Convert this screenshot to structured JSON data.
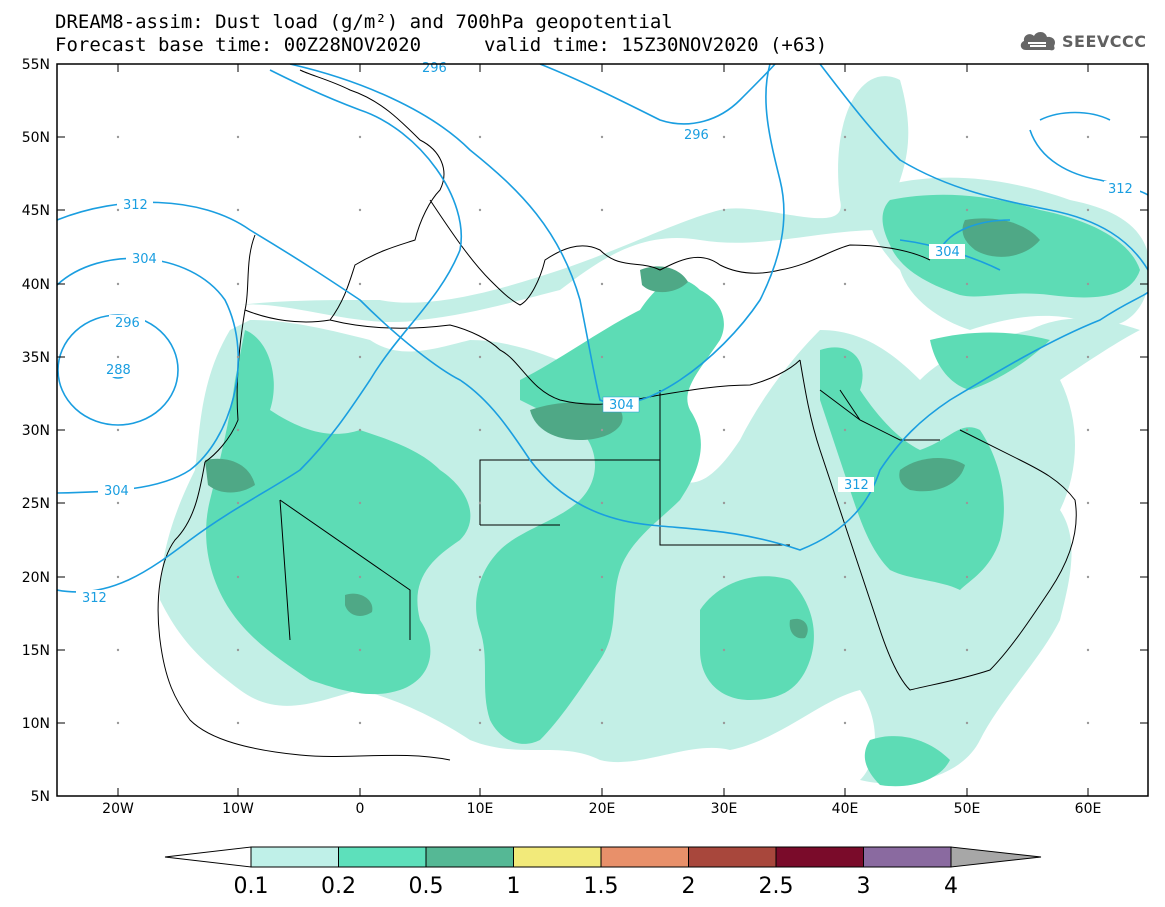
{
  "header": {
    "title_line1": "DREAM8-assim: Dust load (g/m²) and 700hPa geopotential",
    "title_line2_left": "Forecast base time: 00Z28NOV2020",
    "title_line2_right": "valid time: 15Z30NOV2020 (+63)",
    "logo_text": "SEEVCCC"
  },
  "map": {
    "lat_labels": [
      "55N",
      "50N",
      "45N",
      "40N",
      "35N",
      "30N",
      "25N",
      "20N",
      "15N",
      "10N",
      "5N"
    ],
    "lon_labels": [
      "20W",
      "10W",
      "0",
      "10E",
      "20E",
      "30E",
      "40E",
      "50E",
      "60E"
    ],
    "contour_labels": [
      "288",
      "296",
      "304",
      "312",
      "304",
      "296",
      "304",
      "312",
      "304",
      "312",
      "296",
      "312"
    ]
  },
  "colorbar": {
    "ticks": [
      "0.1",
      "0.2",
      "0.5",
      "1",
      "1.5",
      "2",
      "2.5",
      "3",
      "4"
    ],
    "colors": [
      "#bff0e8",
      "#5de0bb",
      "#55b895",
      "#f2ea7a",
      "#e8906a",
      "#a8473c",
      "#7a0b2a",
      "#8a6aa0"
    ],
    "under_color": "#ffffff",
    "over_color": "#a7a7a7"
  },
  "colors": {
    "contour": "#1a9ee0",
    "dust_light": "#c3efe6",
    "dust_mid": "#5ddcb5",
    "dust_dark": "#4fa886"
  }
}
